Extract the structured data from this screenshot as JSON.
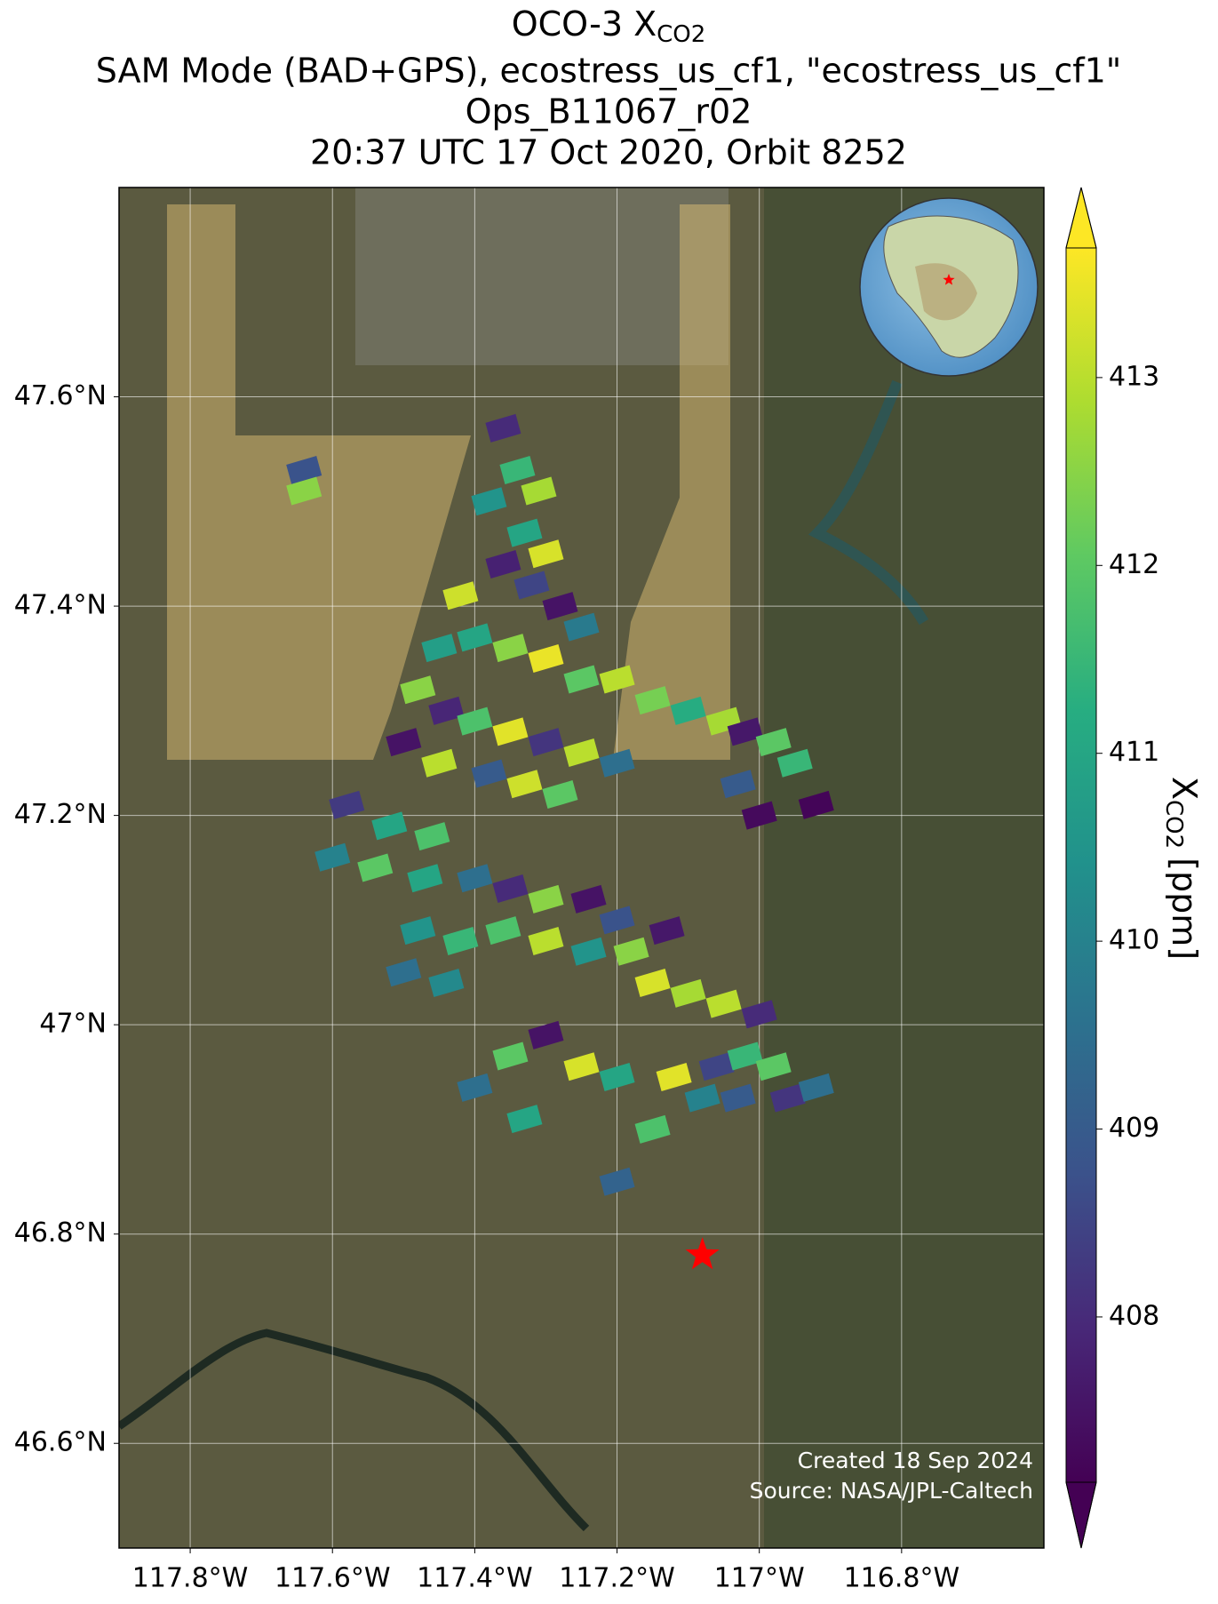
{
  "chart_data": {
    "type": "footprint_map",
    "title_symbol": "OCO-3 X",
    "title_subscript": "CO2",
    "subtitle_lines": [
      "SAM Mode (BAD+GPS), ecostress_us_cf1, \"ecostress_us_cf1\"",
      "Ops_B11067_r02",
      "20:37 UTC 17 Oct 2020, Orbit 8252"
    ],
    "xlim": [
      -117.9,
      -116.6
    ],
    "ylim": [
      46.5,
      47.8
    ],
    "xticks": [
      {
        "value": -117.8,
        "label": "117.8°W"
      },
      {
        "value": -117.6,
        "label": "117.6°W"
      },
      {
        "value": -117.4,
        "label": "117.4°W"
      },
      {
        "value": -117.2,
        "label": "117.2°W"
      },
      {
        "value": -117.0,
        "label": "117°W"
      },
      {
        "value": -116.8,
        "label": "116.8°W"
      }
    ],
    "yticks": [
      {
        "value": 46.6,
        "label": "46.6°N"
      },
      {
        "value": 46.8,
        "label": "46.8°N"
      },
      {
        "value": 47.0,
        "label": "47°N"
      },
      {
        "value": 47.2,
        "label": "47.2°N"
      },
      {
        "value": 47.4,
        "label": "47.4°N"
      },
      {
        "value": 47.6,
        "label": "47.6°N"
      }
    ],
    "grid": true,
    "clim": [
      407.12,
      413.69
    ],
    "cticks": [
      408,
      409,
      410,
      411,
      412,
      413
    ],
    "colormap": "viridis",
    "colorbar_label": {
      "symbol": "X",
      "subscript": "CO2",
      "unit": "[ppm]"
    },
    "target": {
      "lon": -117.08,
      "lat": 46.78,
      "color": "red"
    },
    "footprints": {
      "lon": [
        -117.36,
        -117.34,
        -117.31,
        -117.38,
        -117.33,
        -117.3,
        -117.36,
        -117.32,
        -117.28,
        -117.25,
        -117.42,
        -117.4,
        -117.35,
        -117.3,
        -117.25,
        -117.2,
        -117.15,
        -117.1,
        -117.05,
        -117.02,
        -116.98,
        -116.95,
        -117.45,
        -117.48,
        -117.44,
        -117.4,
        -117.35,
        -117.3,
        -117.25,
        -117.2,
        -117.5,
        -117.45,
        -117.38,
        -117.33,
        -117.28,
        -117.03,
        -117.0,
        -116.92,
        -117.58,
        -117.52,
        -117.46,
        -117.6,
        -117.54,
        -117.47,
        -117.4,
        -117.35,
        -117.3,
        -117.24,
        -117.2,
        -117.48,
        -117.42,
        -117.36,
        -117.3,
        -117.24,
        -117.18,
        -117.13,
        -117.5,
        -117.44,
        -117.15,
        -117.1,
        -117.05,
        -117.0,
        -117.3,
        -117.35,
        -117.25,
        -117.2,
        -117.4,
        -117.12,
        -117.06,
        -117.02,
        -116.98,
        -117.08,
        -117.03,
        -116.96,
        -116.92,
        -117.33,
        -117.15,
        -117.2,
        -117.64,
        -117.64
      ],
      "lat": [
        47.57,
        47.53,
        47.51,
        47.5,
        47.47,
        47.45,
        47.44,
        47.42,
        47.4,
        47.38,
        47.41,
        47.37,
        47.36,
        47.35,
        47.33,
        47.33,
        47.31,
        47.3,
        47.29,
        47.28,
        47.27,
        47.25,
        47.36,
        47.32,
        47.3,
        47.29,
        47.28,
        47.27,
        47.26,
        47.25,
        47.27,
        47.25,
        47.24,
        47.23,
        47.22,
        47.23,
        47.2,
        47.21,
        47.21,
        47.19,
        47.18,
        47.16,
        47.15,
        47.14,
        47.14,
        47.13,
        47.12,
        47.12,
        47.1,
        47.09,
        47.08,
        47.09,
        47.08,
        47.07,
        47.07,
        47.09,
        47.05,
        47.04,
        47.04,
        47.03,
        47.02,
        47.01,
        46.99,
        46.97,
        46.96,
        46.95,
        46.94,
        46.95,
        46.96,
        46.97,
        46.96,
        46.93,
        46.93,
        46.93,
        46.94,
        46.91,
        46.9,
        46.85,
        47.53,
        47.51
      ],
      "values": [
        408.0,
        411.5,
        412.8,
        410.5,
        411.0,
        413.3,
        407.8,
        408.5,
        407.5,
        409.8,
        413.2,
        411.0,
        412.5,
        413.5,
        412.0,
        413.0,
        412.3,
        411.2,
        412.8,
        407.6,
        412.0,
        411.5,
        410.8,
        412.5,
        407.9,
        411.8,
        413.4,
        408.2,
        413.0,
        409.5,
        407.5,
        413.0,
        409.0,
        413.2,
        412.0,
        409.0,
        407.3,
        407.2,
        408.3,
        411.0,
        411.8,
        410.0,
        412.0,
        411.0,
        409.5,
        408.0,
        412.5,
        407.5,
        408.8,
        410.5,
        411.5,
        411.8,
        413.0,
        410.5,
        412.5,
        407.6,
        409.5,
        410.2,
        413.3,
        412.8,
        413.0,
        408.0,
        407.5,
        412.0,
        413.3,
        411.0,
        409.5,
        413.4,
        408.5,
        411.5,
        412.0,
        410.0,
        409.0,
        408.2,
        409.5,
        411.0,
        411.8,
        409.2,
        408.8,
        412.5
      ]
    },
    "credits": [
      "Created 18 Sep 2024",
      "Source: NASA/JPL-Caltech"
    ]
  }
}
